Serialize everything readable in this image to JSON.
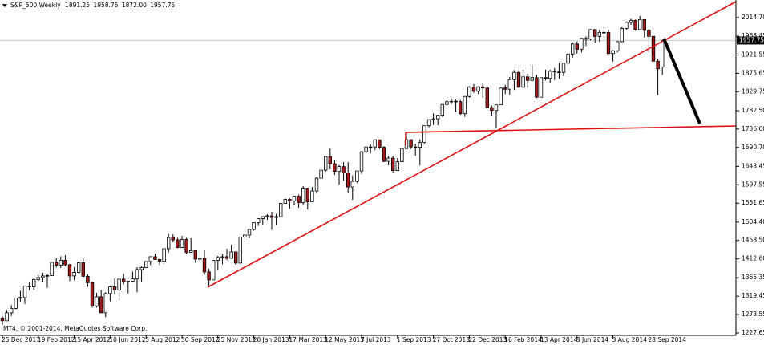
{
  "chart_data": {
    "type": "candlestick",
    "symbol": "S&P_500,Weekly",
    "info_values": [
      "1891.25",
      "1958.75",
      "1872.00",
      "1957.75"
    ],
    "copyright": "MT4, © 2001-2014, MetaQuotes Software Corp.",
    "up_color": "#ffffff",
    "down_color": "#a11a1a",
    "ylim": [
      1221.64,
      2058.76
    ],
    "yticks": [
      {
        "value": 2014.7,
        "label": "2014.70"
      },
      {
        "value": 1968.45,
        "label": "1968.45"
      },
      {
        "value": 1921.55,
        "label": "1921.55"
      },
      {
        "value": 1875.65,
        "label": "1875.65"
      },
      {
        "value": 1829.75,
        "label": "1829.75"
      },
      {
        "value": 1782.5,
        "label": "1782.50"
      },
      {
        "value": 1736.6,
        "label": "1736.60"
      },
      {
        "value": 1690.7,
        "label": "1690.70"
      },
      {
        "value": 1643.45,
        "label": "1643.45"
      },
      {
        "value": 1597.55,
        "label": "1597.55"
      },
      {
        "value": 1551.65,
        "label": "1551.65"
      },
      {
        "value": 1504.4,
        "label": "1504.40"
      },
      {
        "value": 1458.5,
        "label": "1458.50"
      },
      {
        "value": 1412.6,
        "label": "1412.60"
      },
      {
        "value": 1365.35,
        "label": "1365.35"
      },
      {
        "value": 1319.45,
        "label": "1319.45"
      },
      {
        "value": 1273.55,
        "label": "1273.55"
      },
      {
        "value": 1227.65,
        "label": "1227.65"
      }
    ],
    "xticks": [
      {
        "value": 0,
        "label": "25 Dec 2011"
      },
      {
        "value": 8,
        "label": "19 Feb 2012"
      },
      {
        "value": 16,
        "label": "15 Apr 2012"
      },
      {
        "value": 24,
        "label": "10 Jun 2012"
      },
      {
        "value": 32,
        "label": "5 Aug 2012"
      },
      {
        "value": 40,
        "label": "30 Sep 2012"
      },
      {
        "value": 48,
        "label": "25 Nov 2012"
      },
      {
        "value": 56,
        "label": "20 Jan 2013"
      },
      {
        "value": 64,
        "label": "17 Mar 2013"
      },
      {
        "value": 72,
        "label": "12 May 2013"
      },
      {
        "value": 80,
        "label": "7 Jul 2013"
      },
      {
        "value": 88,
        "label": "1 Sep 2013"
      },
      {
        "value": 96,
        "label": "27 Oct 2013"
      },
      {
        "value": 104,
        "label": "22 Dec 2013"
      },
      {
        "value": 112,
        "label": "16 Feb 2014"
      },
      {
        "value": 120,
        "label": "13 Apr 2014"
      },
      {
        "value": 128,
        "label": "8 Jun 2014"
      },
      {
        "value": 136,
        "label": "3 Aug 2014"
      },
      {
        "value": 144,
        "label": "28 Sep 2014"
      }
    ],
    "ohlc": [
      [
        1265,
        1270,
        1248,
        1258
      ],
      [
        1258,
        1285,
        1258,
        1278
      ],
      [
        1278,
        1297,
        1270,
        1289
      ],
      [
        1289,
        1316,
        1287,
        1315
      ],
      [
        1315,
        1333,
        1306,
        1316
      ],
      [
        1316,
        1346,
        1300,
        1345
      ],
      [
        1345,
        1354,
        1334,
        1343
      ],
      [
        1343,
        1364,
        1335,
        1361
      ],
      [
        1361,
        1372,
        1356,
        1366
      ],
      [
        1366,
        1378,
        1354,
        1370
      ],
      [
        1370,
        1374,
        1340,
        1371
      ],
      [
        1371,
        1405,
        1370,
        1404
      ],
      [
        1404,
        1414,
        1391,
        1397
      ],
      [
        1397,
        1419,
        1390,
        1409
      ],
      [
        1409,
        1422,
        1394,
        1398
      ],
      [
        1398,
        1400,
        1357,
        1370
      ],
      [
        1370,
        1392,
        1359,
        1379
      ],
      [
        1379,
        1406,
        1375,
        1403
      ],
      [
        1403,
        1415,
        1368,
        1369
      ],
      [
        1369,
        1374,
        1343,
        1353
      ],
      [
        1353,
        1356,
        1291,
        1295
      ],
      [
        1295,
        1328,
        1291,
        1318
      ],
      [
        1318,
        1335,
        1277,
        1278
      ],
      [
        1278,
        1329,
        1267,
        1326
      ],
      [
        1326,
        1345,
        1307,
        1343
      ],
      [
        1343,
        1364,
        1324,
        1335
      ],
      [
        1335,
        1363,
        1309,
        1362
      ],
      [
        1362,
        1375,
        1349,
        1355
      ],
      [
        1355,
        1358,
        1326,
        1357
      ],
      [
        1357,
        1381,
        1357,
        1363
      ],
      [
        1363,
        1392,
        1329,
        1386
      ],
      [
        1386,
        1394,
        1354,
        1391
      ],
      [
        1391,
        1407,
        1390,
        1406
      ],
      [
        1406,
        1419,
        1397,
        1418
      ],
      [
        1418,
        1426,
        1410,
        1411
      ],
      [
        1411,
        1413,
        1397,
        1407
      ],
      [
        1407,
        1438,
        1401,
        1438
      ],
      [
        1438,
        1475,
        1429,
        1466
      ],
      [
        1466,
        1474,
        1454,
        1460
      ],
      [
        1460,
        1465,
        1439,
        1441
      ],
      [
        1441,
        1470,
        1441,
        1461
      ],
      [
        1461,
        1465,
        1425,
        1429
      ],
      [
        1429,
        1464,
        1428,
        1433
      ],
      [
        1433,
        1434,
        1403,
        1412
      ],
      [
        1412,
        1434,
        1405,
        1414
      ],
      [
        1414,
        1434,
        1373,
        1380
      ],
      [
        1380,
        1388,
        1343,
        1360
      ],
      [
        1360,
        1410,
        1360,
        1409
      ],
      [
        1409,
        1420,
        1385,
        1416
      ],
      [
        1416,
        1424,
        1399,
        1418
      ],
      [
        1418,
        1438,
        1410,
        1414
      ],
      [
        1414,
        1448,
        1414,
        1430
      ],
      [
        1430,
        1431,
        1398,
        1402
      ],
      [
        1402,
        1467,
        1402,
        1467
      ],
      [
        1467,
        1473,
        1454,
        1472
      ],
      [
        1472,
        1486,
        1464,
        1486
      ],
      [
        1486,
        1503,
        1483,
        1503
      ],
      [
        1503,
        1514,
        1495,
        1513
      ],
      [
        1513,
        1518,
        1498,
        1518
      ],
      [
        1518,
        1524,
        1510,
        1520
      ],
      [
        1520,
        1530,
        1485,
        1516
      ],
      [
        1516,
        1525,
        1497,
        1518
      ],
      [
        1518,
        1552,
        1515,
        1551
      ],
      [
        1551,
        1563,
        1550,
        1561
      ],
      [
        1561,
        1564,
        1538,
        1557
      ],
      [
        1557,
        1570,
        1546,
        1569
      ],
      [
        1569,
        1573,
        1540,
        1553
      ],
      [
        1553,
        1594,
        1548,
        1589
      ],
      [
        1589,
        1589,
        1536,
        1555
      ],
      [
        1555,
        1592,
        1555,
        1582
      ],
      [
        1582,
        1618,
        1577,
        1614
      ],
      [
        1614,
        1635,
        1614,
        1634
      ],
      [
        1634,
        1668,
        1630,
        1668
      ],
      [
        1668,
        1688,
        1636,
        1650
      ],
      [
        1650,
        1658,
        1622,
        1631
      ],
      [
        1631,
        1647,
        1598,
        1643
      ],
      [
        1643,
        1654,
        1608,
        1627
      ],
      [
        1627,
        1654,
        1578,
        1592
      ],
      [
        1592,
        1621,
        1560,
        1606
      ],
      [
        1606,
        1632,
        1602,
        1632
      ],
      [
        1632,
        1681,
        1625,
        1680
      ],
      [
        1680,
        1693,
        1675,
        1692
      ],
      [
        1692,
        1698,
        1676,
        1692
      ],
      [
        1692,
        1710,
        1684,
        1710
      ],
      [
        1710,
        1710,
        1687,
        1691
      ],
      [
        1691,
        1694,
        1654,
        1656
      ],
      [
        1656,
        1669,
        1646,
        1664
      ],
      [
        1664,
        1669,
        1627,
        1633
      ],
      [
        1633,
        1664,
        1633,
        1655
      ],
      [
        1655,
        1689,
        1655,
        1688
      ],
      [
        1688,
        1730,
        1687,
        1710
      ],
      [
        1710,
        1711,
        1687,
        1692
      ],
      [
        1692,
        1700,
        1670,
        1691
      ],
      [
        1691,
        1711,
        1646,
        1703
      ],
      [
        1703,
        1745,
        1701,
        1745
      ],
      [
        1745,
        1760,
        1741,
        1760
      ],
      [
        1760,
        1776,
        1747,
        1762
      ],
      [
        1762,
        1771,
        1746,
        1771
      ],
      [
        1771,
        1799,
        1767,
        1798
      ],
      [
        1798,
        1809,
        1788,
        1805
      ],
      [
        1805,
        1813,
        1799,
        1806
      ],
      [
        1806,
        1810,
        1779,
        1805
      ],
      [
        1805,
        1809,
        1772,
        1775
      ],
      [
        1775,
        1819,
        1767,
        1818
      ],
      [
        1818,
        1844,
        1815,
        1841
      ],
      [
        1841,
        1849,
        1827,
        1831
      ],
      [
        1831,
        1843,
        1824,
        1842
      ],
      [
        1842,
        1850,
        1815,
        1839
      ],
      [
        1839,
        1843,
        1790,
        1790
      ],
      [
        1790,
        1795,
        1770,
        1783
      ],
      [
        1783,
        1798,
        1738,
        1797
      ],
      [
        1797,
        1840,
        1797,
        1839
      ],
      [
        1839,
        1847,
        1824,
        1836
      ],
      [
        1836,
        1867,
        1822,
        1860
      ],
      [
        1860,
        1884,
        1834,
        1878
      ],
      [
        1878,
        1883,
        1840,
        1841
      ],
      [
        1841,
        1884,
        1840,
        1867
      ],
      [
        1867,
        1875,
        1840,
        1858
      ],
      [
        1858,
        1897,
        1857,
        1865
      ],
      [
        1865,
        1872,
        1814,
        1816
      ],
      [
        1816,
        1865,
        1816,
        1865
      ],
      [
        1865,
        1885,
        1858,
        1863
      ],
      [
        1863,
        1885,
        1851,
        1881
      ],
      [
        1881,
        1889,
        1859,
        1879
      ],
      [
        1879,
        1902,
        1862,
        1878
      ],
      [
        1878,
        1902,
        1868,
        1901
      ],
      [
        1901,
        1925,
        1898,
        1924
      ],
      [
        1924,
        1953,
        1915,
        1949
      ],
      [
        1949,
        1955,
        1925,
        1936
      ],
      [
        1936,
        1964,
        1928,
        1963
      ],
      [
        1963,
        1968,
        1944,
        1961
      ],
      [
        1961,
        1986,
        1958,
        1985
      ],
      [
        1985,
        1986,
        1952,
        1968
      ],
      [
        1968,
        1984,
        1954,
        1978
      ],
      [
        1978,
        1991,
        1965,
        1978
      ],
      [
        1978,
        1985,
        1925,
        1925
      ],
      [
        1925,
        1934,
        1905,
        1932
      ],
      [
        1932,
        1956,
        1928,
        1955
      ],
      [
        1955,
        1991,
        1953,
        1988
      ],
      [
        1988,
        2005,
        1984,
        2003
      ],
      [
        2003,
        2012,
        1997,
        2008
      ],
      [
        2008,
        2010,
        1982,
        1985
      ],
      [
        1985,
        2019,
        1985,
        2010
      ],
      [
        2010,
        2010,
        1965,
        1983
      ],
      [
        1983,
        1986,
        1926,
        1968
      ],
      [
        1968,
        1969,
        1906,
        1906
      ],
      [
        1906,
        1912,
        1821,
        1887
      ],
      [
        1891.25,
        1958.75,
        1872,
        1957.75
      ]
    ]
  }
}
